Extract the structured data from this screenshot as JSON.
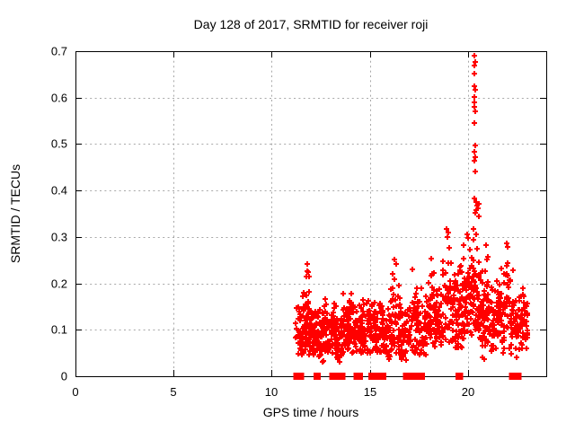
{
  "chart_data": {
    "type": "scatter",
    "title": "Day 128 of 2017, SRMTID for receiver roji",
    "xlabel": "GPS time / hours",
    "ylabel": "SRMTID / TECUs",
    "xlim": [
      0,
      24
    ],
    "ylim": [
      0,
      0.7
    ],
    "xticks": [
      0,
      5,
      10,
      15,
      20
    ],
    "yticks": [
      0,
      0.1,
      0.2,
      0.3,
      0.4,
      0.5,
      0.6,
      0.7
    ],
    "grid": true,
    "legend": "none",
    "marker": "plus",
    "marker_color": "#ff0000",
    "grid_color": "#a8a8a8",
    "axis_color": "#000000",
    "background_color": "#ffffff",
    "cluster_format": [
      "x_start_h",
      "x_end_h",
      "n_points",
      "y_mean",
      "y_std",
      "y_min",
      "y_max"
    ],
    "clusters": [
      [
        11.22,
        11.55,
        30,
        0.085,
        0.035,
        0.045,
        0.155
      ],
      [
        11.55,
        11.75,
        28,
        0.1,
        0.04,
        0.05,
        0.18
      ],
      [
        11.72,
        11.92,
        30,
        0.13,
        0.05,
        0.06,
        0.23
      ],
      [
        11.9,
        12.25,
        50,
        0.095,
        0.035,
        0.045,
        0.165
      ],
      [
        12.25,
        12.6,
        45,
        0.085,
        0.035,
        0.04,
        0.15
      ],
      [
        12.6,
        13.0,
        55,
        0.105,
        0.035,
        0.05,
        0.17
      ],
      [
        13.0,
        13.3,
        40,
        0.1,
        0.035,
        0.05,
        0.16
      ],
      [
        13.3,
        13.62,
        38,
        0.075,
        0.03,
        0.035,
        0.125
      ],
      [
        13.62,
        14.1,
        55,
        0.105,
        0.035,
        0.05,
        0.18
      ],
      [
        14.1,
        14.6,
        50,
        0.09,
        0.032,
        0.045,
        0.155
      ],
      [
        14.6,
        15.1,
        50,
        0.1,
        0.032,
        0.05,
        0.165
      ],
      [
        15.1,
        15.6,
        52,
        0.1,
        0.03,
        0.05,
        0.16
      ],
      [
        15.6,
        16.05,
        45,
        0.095,
        0.032,
        0.04,
        0.155
      ],
      [
        16.05,
        16.55,
        52,
        0.115,
        0.042,
        0.05,
        0.24
      ],
      [
        16.55,
        17.0,
        45,
        0.09,
        0.032,
        0.035,
        0.15
      ],
      [
        17.0,
        17.5,
        52,
        0.11,
        0.04,
        0.05,
        0.22
      ],
      [
        17.5,
        18.0,
        50,
        0.105,
        0.036,
        0.045,
        0.2
      ],
      [
        18.0,
        18.3,
        40,
        0.15,
        0.05,
        0.07,
        0.27
      ],
      [
        18.3,
        18.7,
        45,
        0.12,
        0.04,
        0.06,
        0.22
      ],
      [
        18.7,
        19.35,
        60,
        0.155,
        0.055,
        0.07,
        0.315
      ],
      [
        19.35,
        19.75,
        52,
        0.13,
        0.045,
        0.06,
        0.25
      ],
      [
        19.75,
        20.2,
        62,
        0.16,
        0.05,
        0.08,
        0.3
      ],
      [
        20.2,
        20.6,
        55,
        0.17,
        0.055,
        0.09,
        0.33
      ],
      [
        20.6,
        21.1,
        65,
        0.14,
        0.05,
        0.06,
        0.28
      ],
      [
        21.1,
        21.6,
        55,
        0.12,
        0.038,
        0.05,
        0.21
      ],
      [
        21.6,
        22.2,
        58,
        0.15,
        0.05,
        0.06,
        0.285
      ],
      [
        22.2,
        22.7,
        52,
        0.115,
        0.045,
        0.04,
        0.25
      ],
      [
        22.7,
        23.05,
        38,
        0.12,
        0.035,
        0.06,
        0.19
      ]
    ],
    "extra_points": [
      [
        20.33,
        0.69
      ],
      [
        20.36,
        0.676
      ],
      [
        20.34,
        0.669
      ],
      [
        20.35,
        0.651
      ],
      [
        20.33,
        0.624
      ],
      [
        20.36,
        0.616
      ],
      [
        20.34,
        0.601
      ],
      [
        20.35,
        0.589
      ],
      [
        20.33,
        0.581
      ],
      [
        20.36,
        0.571
      ],
      [
        20.34,
        0.546
      ],
      [
        20.37,
        0.497
      ],
      [
        20.34,
        0.483
      ],
      [
        20.36,
        0.472
      ],
      [
        20.33,
        0.464
      ],
      [
        20.37,
        0.441
      ],
      [
        20.35,
        0.383
      ],
      [
        20.42,
        0.375
      ],
      [
        20.48,
        0.368
      ],
      [
        20.52,
        0.362
      ],
      [
        20.56,
        0.372
      ],
      [
        20.45,
        0.357
      ],
      [
        20.38,
        0.351
      ],
      [
        20.57,
        0.344
      ],
      [
        20.3,
        0.318
      ],
      [
        20.44,
        0.305
      ],
      [
        11.8,
        0.242
      ],
      [
        11.83,
        0.227
      ],
      [
        16.28,
        0.252
      ],
      [
        16.33,
        0.242
      ],
      [
        17.18,
        0.23
      ],
      [
        18.92,
        0.318
      ],
      [
        19.02,
        0.31
      ],
      [
        18.97,
        0.3
      ],
      [
        19.97,
        0.305
      ],
      [
        20.02,
        0.298
      ],
      [
        21.98,
        0.287
      ],
      [
        22.02,
        0.278
      ],
      [
        20.95,
        0.283
      ],
      [
        12.6,
        0.031
      ],
      [
        12.64,
        0.033
      ],
      [
        15.92,
        0.043
      ],
      [
        15.97,
        0.037
      ],
      [
        16.35,
        0.05
      ],
      [
        16.62,
        0.036
      ],
      [
        16.7,
        0.043
      ],
      [
        20.74,
        0.041
      ],
      [
        20.84,
        0.036
      ],
      [
        21.8,
        0.05
      ],
      [
        13.45,
        0.03
      ]
    ],
    "zero_value_runs": [
      [
        11.25,
        11.52
      ],
      [
        12.28,
        12.36
      ],
      [
        13.08,
        13.28
      ],
      [
        13.4,
        13.62
      ],
      [
        14.32,
        14.52
      ],
      [
        15.06,
        15.72
      ],
      [
        16.84,
        17.1
      ],
      [
        17.12,
        17.3
      ],
      [
        17.53,
        17.68
      ],
      [
        19.52,
        19.62
      ],
      [
        22.24,
        22.42
      ],
      [
        22.48,
        22.6
      ]
    ]
  }
}
